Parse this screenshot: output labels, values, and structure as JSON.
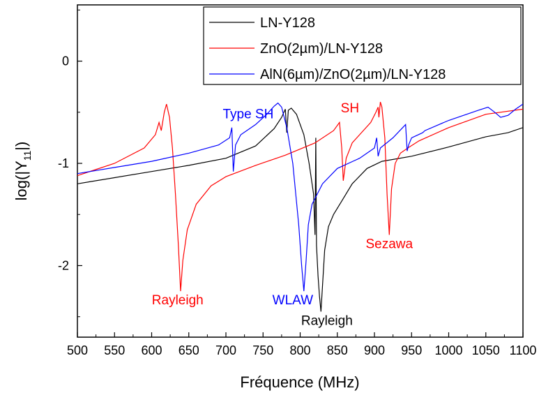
{
  "chart_data": {
    "type": "line",
    "xlabel": "Fréquence (MHz)",
    "ylabel_main": "log(|Y",
    "ylabel_sub": "11",
    "ylabel_end": "|)",
    "xlim": [
      500,
      1100
    ],
    "ylim": [
      -2.7,
      0.55
    ],
    "x_ticks": [
      500,
      550,
      600,
      650,
      700,
      750,
      800,
      850,
      900,
      950,
      1000,
      1050,
      1100
    ],
    "y_ticks": [
      0,
      -1,
      -2
    ],
    "legend_position": "top-right",
    "series": [
      {
        "name": "LN-Y128",
        "color": "#000000",
        "points": [
          [
            500,
            -1.2
          ],
          [
            550,
            -1.14
          ],
          [
            600,
            -1.08
          ],
          [
            650,
            -1.02
          ],
          [
            700,
            -0.95
          ],
          [
            740,
            -0.83
          ],
          [
            765,
            -0.66
          ],
          [
            775,
            -0.55
          ],
          [
            780,
            -0.47
          ],
          [
            782,
            -0.7
          ],
          [
            784,
            -0.48
          ],
          [
            788,
            -0.46
          ],
          [
            795,
            -0.52
          ],
          [
            805,
            -0.72
          ],
          [
            812,
            -1.0
          ],
          [
            818,
            -1.3
          ],
          [
            820,
            -1.7
          ],
          [
            821,
            -0.75
          ],
          [
            822,
            -1.8
          ],
          [
            824,
            -2.1
          ],
          [
            826,
            -2.3
          ],
          [
            828,
            -2.45
          ],
          [
            830,
            -2.2
          ],
          [
            833,
            -1.85
          ],
          [
            838,
            -1.62
          ],
          [
            845,
            -1.5
          ],
          [
            855,
            -1.38
          ],
          [
            870,
            -1.2
          ],
          [
            890,
            -1.05
          ],
          [
            910,
            -0.98
          ],
          [
            950,
            -0.93
          ],
          [
            1000,
            -0.84
          ],
          [
            1050,
            -0.74
          ],
          [
            1080,
            -0.7
          ],
          [
            1100,
            -0.65
          ]
        ]
      },
      {
        "name": "ZnO(2µm)/LN-Y128",
        "color": "#ff0000",
        "points": [
          [
            500,
            -1.12
          ],
          [
            550,
            -1.0
          ],
          [
            590,
            -0.85
          ],
          [
            605,
            -0.72
          ],
          [
            610,
            -0.6
          ],
          [
            613,
            -0.68
          ],
          [
            617,
            -0.5
          ],
          [
            620,
            -0.42
          ],
          [
            624,
            -0.55
          ],
          [
            628,
            -0.85
          ],
          [
            632,
            -1.3
          ],
          [
            636,
            -1.8
          ],
          [
            639,
            -2.25
          ],
          [
            642,
            -1.95
          ],
          [
            648,
            -1.65
          ],
          [
            660,
            -1.4
          ],
          [
            680,
            -1.22
          ],
          [
            700,
            -1.13
          ],
          [
            740,
            -1.02
          ],
          [
            780,
            -0.92
          ],
          [
            820,
            -0.8
          ],
          [
            845,
            -0.68
          ],
          [
            853,
            -0.6
          ],
          [
            856,
            -0.85
          ],
          [
            858,
            -1.17
          ],
          [
            862,
            -0.95
          ],
          [
            870,
            -0.8
          ],
          [
            880,
            -0.72
          ],
          [
            895,
            -0.6
          ],
          [
            902,
            -0.5
          ],
          [
            905,
            -0.45
          ],
          [
            906,
            -0.55
          ],
          [
            908,
            -0.4
          ],
          [
            910,
            -0.45
          ],
          [
            914,
            -0.75
          ],
          [
            917,
            -1.3
          ],
          [
            920,
            -1.7
          ],
          [
            923,
            -1.25
          ],
          [
            928,
            -1.0
          ],
          [
            935,
            -0.9
          ],
          [
            945,
            -0.85
          ],
          [
            960,
            -0.78
          ],
          [
            1000,
            -0.65
          ],
          [
            1050,
            -0.52
          ],
          [
            1100,
            -0.47
          ]
        ]
      },
      {
        "name": "AlN(6µm)/ZnO(2µm)/LN-Y128",
        "color": "#0000ff",
        "points": [
          [
            500,
            -1.1
          ],
          [
            550,
            -1.04
          ],
          [
            600,
            -0.98
          ],
          [
            650,
            -0.9
          ],
          [
            690,
            -0.82
          ],
          [
            705,
            -0.75
          ],
          [
            708,
            -0.65
          ],
          [
            710,
            -1.08
          ],
          [
            713,
            -0.82
          ],
          [
            720,
            -0.72
          ],
          [
            740,
            -0.62
          ],
          [
            755,
            -0.52
          ],
          [
            765,
            -0.44
          ],
          [
            770,
            -0.41
          ],
          [
            775,
            -0.45
          ],
          [
            782,
            -0.65
          ],
          [
            790,
            -1.0
          ],
          [
            798,
            -1.6
          ],
          [
            802,
            -2.0
          ],
          [
            805,
            -2.25
          ],
          [
            808,
            -1.95
          ],
          [
            811,
            -1.6
          ],
          [
            816,
            -1.4
          ],
          [
            830,
            -1.2
          ],
          [
            850,
            -1.05
          ],
          [
            880,
            -0.95
          ],
          [
            900,
            -0.85
          ],
          [
            903,
            -0.75
          ],
          [
            905,
            -0.93
          ],
          [
            908,
            -0.85
          ],
          [
            925,
            -0.75
          ],
          [
            938,
            -0.65
          ],
          [
            942,
            -0.62
          ],
          [
            944,
            -0.88
          ],
          [
            946,
            -0.82
          ],
          [
            950,
            -0.75
          ],
          [
            965,
            -0.7
          ],
          [
            968,
            -0.68
          ],
          [
            1000,
            -0.58
          ],
          [
            1040,
            -0.48
          ],
          [
            1053,
            -0.45
          ],
          [
            1062,
            -0.5
          ],
          [
            1070,
            -0.55
          ],
          [
            1080,
            -0.53
          ],
          [
            1090,
            -0.47
          ],
          [
            1100,
            -0.42
          ]
        ]
      }
    ],
    "annotations": [
      {
        "text": "Type SH",
        "x": 730,
        "y": -0.56,
        "color": "#0000ff"
      },
      {
        "text": "SH",
        "x": 867,
        "y": -0.5,
        "color": "#ff0000"
      },
      {
        "text": "Rayleigh",
        "x": 635,
        "y": -2.38,
        "color": "#ff0000"
      },
      {
        "text": "WLAW",
        "x": 790,
        "y": -2.38,
        "color": "#0000ff"
      },
      {
        "text": "Rayleigh",
        "x": 836,
        "y": -2.58,
        "color": "#000000"
      },
      {
        "text": "Sezawa",
        "x": 920,
        "y": -1.83,
        "color": "#ff0000"
      }
    ]
  }
}
